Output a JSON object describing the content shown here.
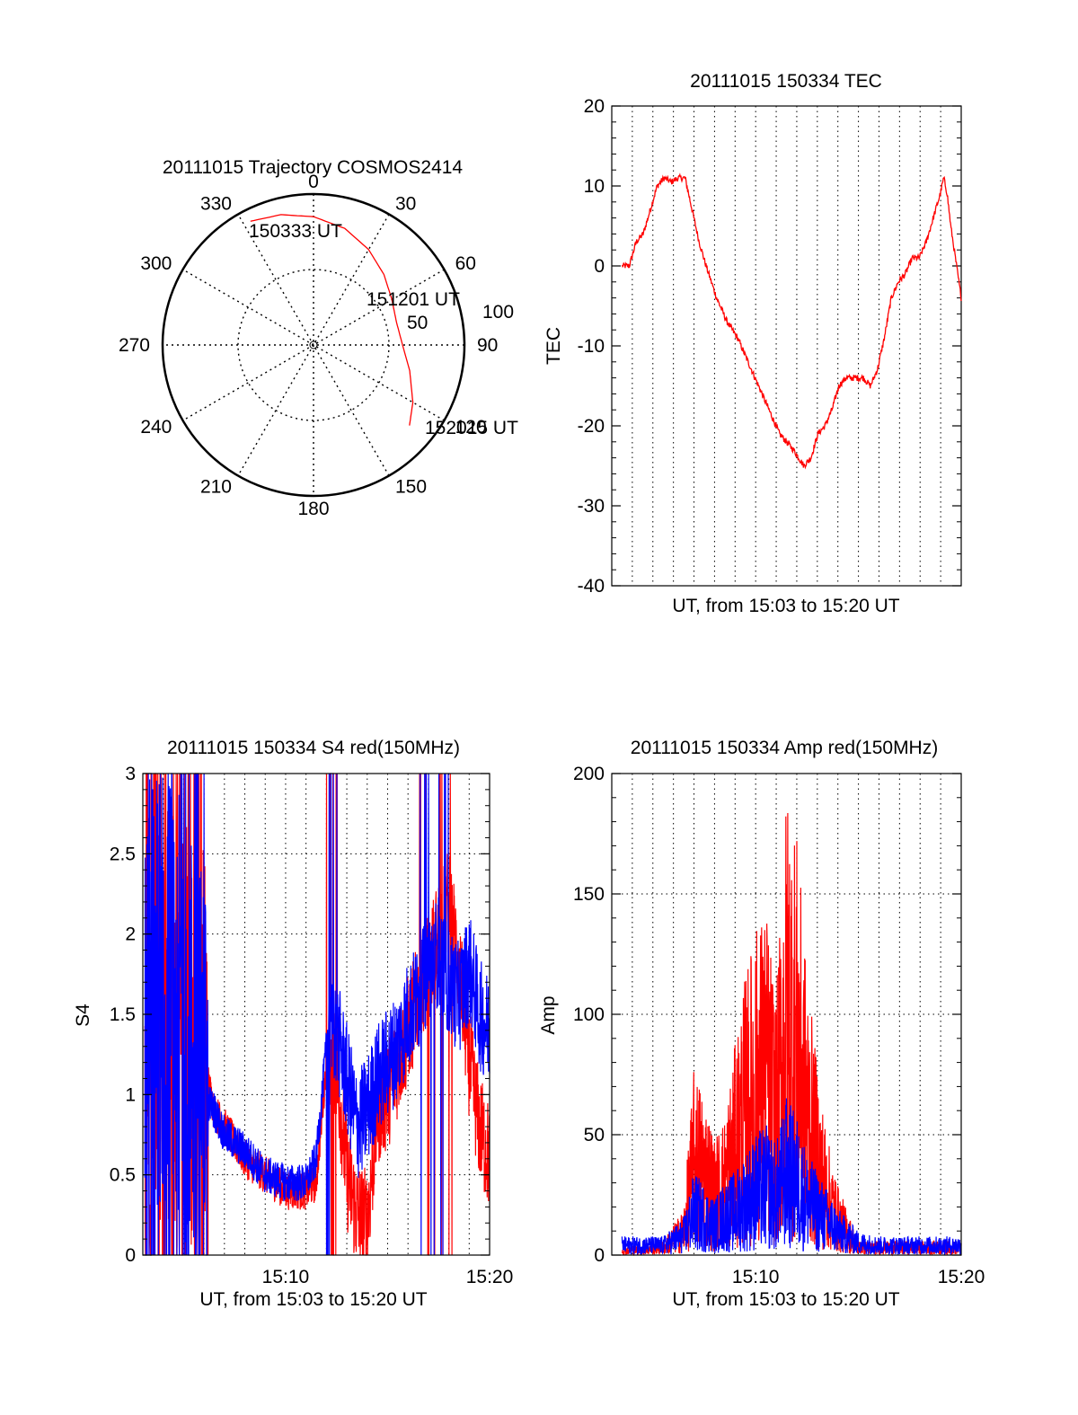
{
  "colors": {
    "red": "#ff0000",
    "blue": "#0000ff",
    "axis": "#000000",
    "grid": "#000000"
  },
  "chart_data": [
    {
      "type": "polar",
      "title": "20111015 Trajectory COSMOS2414",
      "azimuth_labels": [
        "0",
        "30",
        "60",
        "90",
        "120",
        "150",
        "180",
        "210",
        "240",
        "270",
        "300",
        "330"
      ],
      "radial_labels": [
        "50",
        "100"
      ],
      "radial_label_values": [
        50,
        100
      ],
      "trajectory": {
        "color": "red",
        "start_label": "150333 UT",
        "mid_label": "151201 UT",
        "end_label": "152015 UT",
        "points": [
          [
            -27,
            92
          ],
          [
            -14,
            89
          ],
          [
            0,
            85
          ],
          [
            15,
            80
          ],
          [
            30,
            73
          ],
          [
            45,
            66
          ],
          [
            60,
            60
          ],
          [
            75,
            57
          ],
          [
            90,
            59
          ],
          [
            105,
            66
          ],
          [
            120,
            76
          ],
          [
            130,
            83
          ]
        ]
      }
    },
    {
      "type": "line",
      "title": "20111015 150334 TEC",
      "xlabel": "UT, from 15:03 to 15:20 UT",
      "ylabel": "TEC",
      "ylim": [
        -40,
        20
      ],
      "yticks": [
        "-40",
        "-30",
        "-20",
        "-10",
        "0",
        "10",
        "20"
      ],
      "xlim": [
        0,
        1
      ],
      "grid": "dotted vertical",
      "series": [
        {
          "color": "red",
          "x": [
            0.03,
            0.05,
            0.07,
            0.09,
            0.11,
            0.13,
            0.15,
            0.17,
            0.19,
            0.21,
            0.23,
            0.25,
            0.27,
            0.3,
            0.33,
            0.36,
            0.4,
            0.44,
            0.48,
            0.52,
            0.55,
            0.57,
            0.59,
            0.61,
            0.63,
            0.65,
            0.67,
            0.69,
            0.71,
            0.72,
            0.74,
            0.76,
            0.78,
            0.8,
            0.82,
            0.84,
            0.86,
            0.88,
            0.9,
            0.92,
            0.94,
            0.95,
            0.96,
            0.97,
            0.98,
            1.0
          ],
          "y": [
            0,
            0,
            3,
            4,
            7,
            10,
            11,
            10.5,
            11,
            11,
            7,
            3,
            0,
            -4,
            -7,
            -9,
            -13,
            -17,
            -21,
            -23,
            -25,
            -24,
            -21,
            -20,
            -18,
            -15,
            -14,
            -14,
            -14,
            -14,
            -15,
            -13,
            -9,
            -4,
            -2,
            -1,
            1,
            1,
            3,
            6,
            9,
            11,
            9,
            5,
            2,
            -4
          ]
        }
      ]
    },
    {
      "type": "line",
      "title": "20111015 150334 S4 red(150MHz)",
      "xlabel": "UT, from 15:03 to 15:20 UT",
      "ylabel": "S4",
      "ylim": [
        0,
        3
      ],
      "yticks": [
        "0",
        "0.5",
        "1",
        "1.5",
        "2",
        "2.5",
        "3"
      ],
      "xticks": [
        "15:10",
        "15:20"
      ],
      "xlim_minutes": [
        3,
        20
      ],
      "grid": "dotted vertical and horizontal",
      "series": [
        {
          "color": "red",
          "x": [
            3.1,
            4.0,
            5.0,
            6.0,
            6.5,
            7.0,
            8.0,
            9.0,
            10.0,
            11.0,
            11.5,
            12.0,
            12.5,
            13.0,
            13.5,
            14.0,
            14.5,
            15.0,
            15.5,
            16.0,
            16.5,
            17.0,
            17.5,
            18.0,
            18.5,
            19.0,
            19.5,
            20.0
          ],
          "y": [
            1.5,
            1.5,
            1.4,
            1.2,
            0.9,
            0.8,
            0.6,
            0.5,
            0.4,
            0.4,
            0.45,
            1.2,
            1.2,
            0.5,
            0.25,
            0.2,
            0.9,
            1.0,
            1.2,
            1.4,
            1.6,
            1.8,
            2.0,
            2.2,
            1.8,
            1.2,
            0.8,
            0.6
          ]
        },
        {
          "color": "blue",
          "x": [
            3.1,
            4.0,
            5.0,
            6.0,
            6.5,
            7.0,
            8.0,
            9.0,
            10.0,
            11.0,
            11.5,
            12.0,
            12.5,
            13.0,
            13.5,
            14.0,
            14.5,
            15.0,
            15.5,
            16.0,
            16.5,
            17.0,
            17.5,
            18.0,
            18.5,
            19.0,
            19.5,
            20.0
          ],
          "y": [
            1.6,
            1.7,
            1.5,
            1.0,
            0.9,
            0.75,
            0.65,
            0.5,
            0.45,
            0.45,
            0.6,
            1.3,
            1.4,
            1.1,
            0.8,
            0.9,
            1.1,
            1.2,
            1.3,
            1.5,
            1.6,
            1.8,
            1.9,
            1.7,
            1.6,
            1.8,
            1.5,
            1.4
          ]
        }
      ]
    },
    {
      "type": "line",
      "title": "20111015 150334 Amp red(150MHz)",
      "xlabel": "UT, from 15:03 to 15:20 UT",
      "ylabel": "Amp",
      "ylim": [
        0,
        200
      ],
      "yticks": [
        "0",
        "50",
        "100",
        "150",
        "200"
      ],
      "xticks": [
        "15:10",
        "15:20"
      ],
      "xlim_minutes": [
        3,
        20
      ],
      "grid": "dotted vertical and horizontal",
      "series": [
        {
          "color": "red",
          "x": [
            3.5,
            4.5,
            5.5,
            6.5,
            7.0,
            7.5,
            8.0,
            8.5,
            9.0,
            9.5,
            10.0,
            10.5,
            11.0,
            11.5,
            12.0,
            12.5,
            13.0,
            13.5,
            14.0,
            15.0,
            16.0,
            17.0,
            18.0,
            19.0,
            20.0
          ],
          "y": [
            2,
            2,
            3,
            10,
            40,
            35,
            25,
            30,
            45,
            60,
            70,
            75,
            55,
            100,
            90,
            60,
            40,
            25,
            15,
            3,
            3,
            3,
            3,
            3,
            3
          ]
        },
        {
          "color": "blue",
          "x": [
            3.5,
            4.5,
            5.5,
            6.5,
            7.0,
            7.5,
            8.0,
            8.5,
            9.0,
            9.5,
            10.0,
            10.5,
            11.0,
            11.5,
            12.0,
            12.5,
            13.0,
            13.5,
            14.0,
            15.0,
            16.0,
            17.0,
            18.0,
            19.0,
            20.0
          ],
          "y": [
            4,
            4,
            4,
            8,
            18,
            15,
            12,
            16,
            18,
            22,
            26,
            28,
            24,
            34,
            30,
            22,
            18,
            14,
            10,
            5,
            4,
            4,
            4,
            4,
            4
          ]
        }
      ]
    }
  ]
}
